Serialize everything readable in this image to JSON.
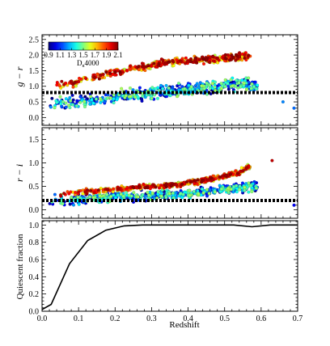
{
  "figure": {
    "xlabel": "Redshift",
    "x_tick_labels": [
      "0.0",
      "0.1",
      "0.2",
      "0.3",
      "0.4",
      "0.5",
      "0.6",
      "0.7"
    ]
  },
  "colorbar": {
    "label_main": "D",
    "label_sub": "n",
    "label_tail": "4000",
    "tick_labels": [
      "0.9",
      "1.1",
      "1.3",
      "1.5",
      "1.7",
      "1.9",
      "2.1"
    ],
    "range": [
      0.9,
      2.1
    ],
    "colormap": "jet"
  },
  "chart_data": [
    {
      "type": "scatter",
      "title": "",
      "ylabel": "g − r",
      "xlim": [
        0.0,
        0.7
      ],
      "ylim": [
        -0.25,
        2.65
      ],
      "y_tick_labels": [
        "0.0",
        "0.5",
        "1.0",
        "1.5",
        "2.0",
        "2.5"
      ],
      "threshold": {
        "value": 0.8,
        "style": "thick black dotted line"
      },
      "description_of_points": "Several hundred galaxies colored by Dn4000; red/orange points form a red sequence rising from ~1.0 at z≈0.05 to ~1.9 at z≈0.5, blue points scatter between 0.3 and 1.2",
      "series": [
        {
          "sample": "red sequence (high Dn4000)",
          "points": [
            [
              0.06,
              1.05
            ],
            [
              0.08,
              1.1
            ],
            [
              0.1,
              1.15
            ],
            [
              0.12,
              1.25
            ],
            [
              0.14,
              1.3
            ],
            [
              0.16,
              1.35
            ],
            [
              0.18,
              1.4
            ],
            [
              0.2,
              1.45
            ],
            [
              0.22,
              1.5
            ],
            [
              0.24,
              1.55
            ],
            [
              0.26,
              1.6
            ],
            [
              0.28,
              1.62
            ],
            [
              0.3,
              1.68
            ],
            [
              0.32,
              1.72
            ],
            [
              0.34,
              1.76
            ],
            [
              0.36,
              1.78
            ],
            [
              0.38,
              1.8
            ],
            [
              0.4,
              1.82
            ],
            [
              0.42,
              1.84
            ],
            [
              0.44,
              1.85
            ],
            [
              0.46,
              1.86
            ],
            [
              0.48,
              1.88
            ],
            [
              0.5,
              1.9
            ],
            [
              0.52,
              1.9
            ],
            [
              0.54,
              1.95
            ]
          ]
        },
        {
          "sample": "blue cloud (low Dn4000)",
          "points": [
            [
              0.04,
              0.45
            ],
            [
              0.08,
              0.5
            ],
            [
              0.12,
              0.55
            ],
            [
              0.16,
              0.6
            ],
            [
              0.2,
              0.65
            ],
            [
              0.24,
              0.7
            ],
            [
              0.28,
              0.75
            ],
            [
              0.32,
              0.8
            ],
            [
              0.36,
              0.85
            ],
            [
              0.4,
              0.9
            ],
            [
              0.44,
              0.95
            ],
            [
              0.48,
              1.0
            ],
            [
              0.52,
              1.05
            ],
            [
              0.56,
              1.1
            ],
            [
              0.66,
              0.5
            ],
            [
              0.69,
              0.3
            ]
          ]
        }
      ]
    },
    {
      "type": "scatter",
      "title": "",
      "ylabel": "r − i",
      "xlim": [
        0.0,
        0.7
      ],
      "ylim": [
        -0.18,
        1.75
      ],
      "y_tick_labels": [
        "0.0",
        "0.5",
        "1.0",
        "1.5"
      ],
      "threshold": {
        "value": 0.2,
        "style": "thick black dotted line"
      },
      "description_of_points": "Same galaxies; red sequence rises from ~0.35 at z≈0.05 to ~0.85 at z≈0.55, blue galaxies scatter between 0.1 and 0.5",
      "series": [
        {
          "sample": "red sequence (high Dn4000)",
          "points": [
            [
              0.06,
              0.35
            ],
            [
              0.1,
              0.38
            ],
            [
              0.14,
              0.4
            ],
            [
              0.18,
              0.42
            ],
            [
              0.22,
              0.45
            ],
            [
              0.26,
              0.48
            ],
            [
              0.3,
              0.5
            ],
            [
              0.34,
              0.52
            ],
            [
              0.38,
              0.55
            ],
            [
              0.42,
              0.6
            ],
            [
              0.46,
              0.65
            ],
            [
              0.5,
              0.72
            ],
            [
              0.54,
              0.8
            ],
            [
              0.56,
              0.9
            ],
            [
              0.63,
              1.05
            ]
          ]
        },
        {
          "sample": "blue cloud (low Dn4000)",
          "points": [
            [
              0.04,
              0.2
            ],
            [
              0.1,
              0.22
            ],
            [
              0.16,
              0.25
            ],
            [
              0.22,
              0.28
            ],
            [
              0.28,
              0.3
            ],
            [
              0.34,
              0.32
            ],
            [
              0.4,
              0.35
            ],
            [
              0.46,
              0.4
            ],
            [
              0.52,
              0.45
            ],
            [
              0.58,
              0.5
            ],
            [
              0.69,
              0.1
            ]
          ]
        }
      ]
    },
    {
      "type": "line",
      "title": "",
      "ylabel": "Quiescent fraction",
      "xlabel": "Redshift",
      "xlim": [
        0.0,
        0.7
      ],
      "ylim": [
        0.0,
        1.05
      ],
      "y_tick_labels": [
        "0.0",
        "0.2",
        "0.4",
        "0.6",
        "0.8",
        "1.0"
      ],
      "x": [
        0.0,
        0.025,
        0.075,
        0.125,
        0.175,
        0.225,
        0.275,
        0.325,
        0.375,
        0.425,
        0.475,
        0.525,
        0.575,
        0.625,
        0.7
      ],
      "values": [
        0.02,
        0.08,
        0.55,
        0.82,
        0.94,
        0.99,
        1.0,
        1.0,
        1.0,
        1.0,
        1.0,
        1.0,
        0.98,
        1.0,
        1.0
      ]
    }
  ]
}
